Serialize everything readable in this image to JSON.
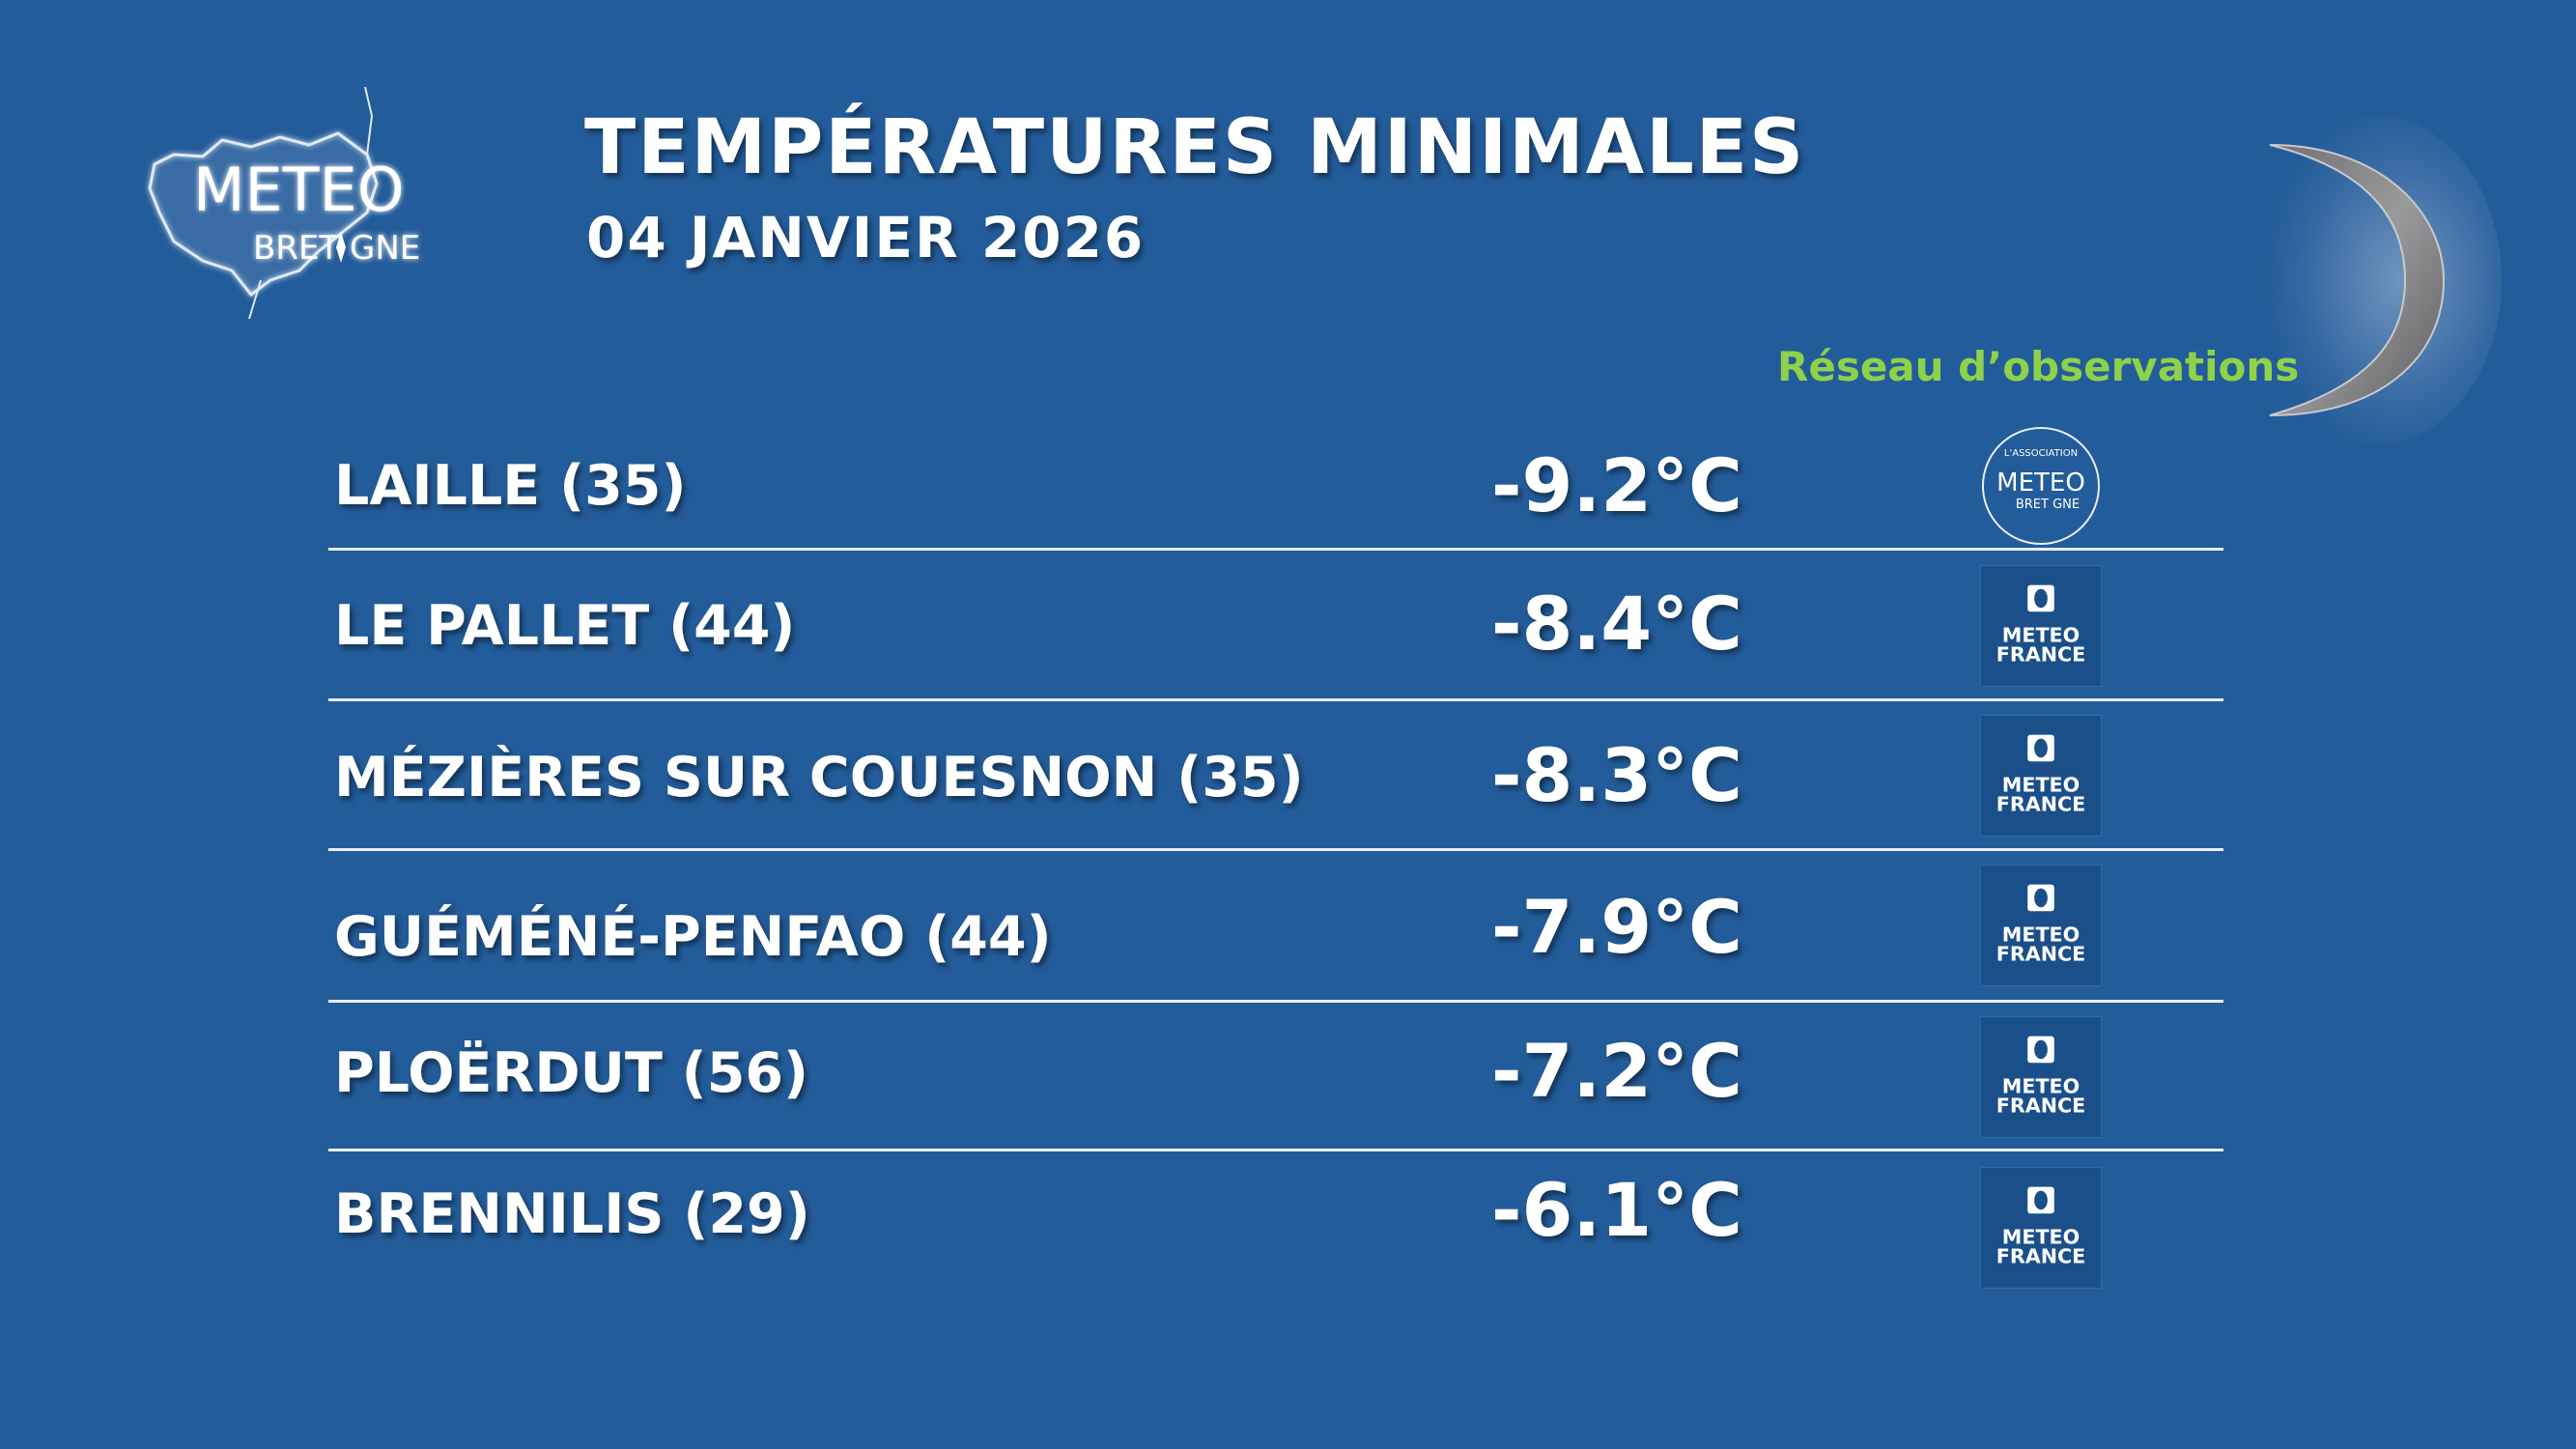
{
  "header": {
    "logo": {
      "icon": "meteo-bretagne-logo",
      "line1": "METEO",
      "line2": "BRET GNE"
    },
    "title": "TEMPÉRATURES MINIMALES",
    "date": "04 JANVIER 2026",
    "network_label": "Réseau d’observations",
    "moon_icon": "crescent-moon-icon"
  },
  "rows": [
    {
      "name": "LAILLE (35)",
      "temp": "-9.2°C",
      "source": "association-meteo-bretagne"
    },
    {
      "name": "LE PALLET (44)",
      "temp": "-8.4°C",
      "source": "meteo-france"
    },
    {
      "name": "MÉZIÈRES SUR COUESNON (35)",
      "temp": "-8.3°C",
      "source": "meteo-france"
    },
    {
      "name": "GUÉMÉNÉ-PENFAO (44)",
      "temp": "-7.9°C",
      "source": "meteo-france"
    },
    {
      "name": "PLOËRDUT (56)",
      "temp": "-7.2°C",
      "source": "meteo-france"
    },
    {
      "name": "BRENNILIS (29)",
      "temp": "-6.1°C",
      "source": "meteo-france"
    }
  ],
  "badges": {
    "meteo_france": {
      "line1": "METEO",
      "line2": "FRANCE"
    },
    "association": {
      "top": "L'ASSOCIATION",
      "middle": "METEO",
      "bottom": "BRET GNE"
    }
  },
  "colors": {
    "background": "#235c9a",
    "network_label": "#8ed14a",
    "badge": "#1a4f8a"
  }
}
